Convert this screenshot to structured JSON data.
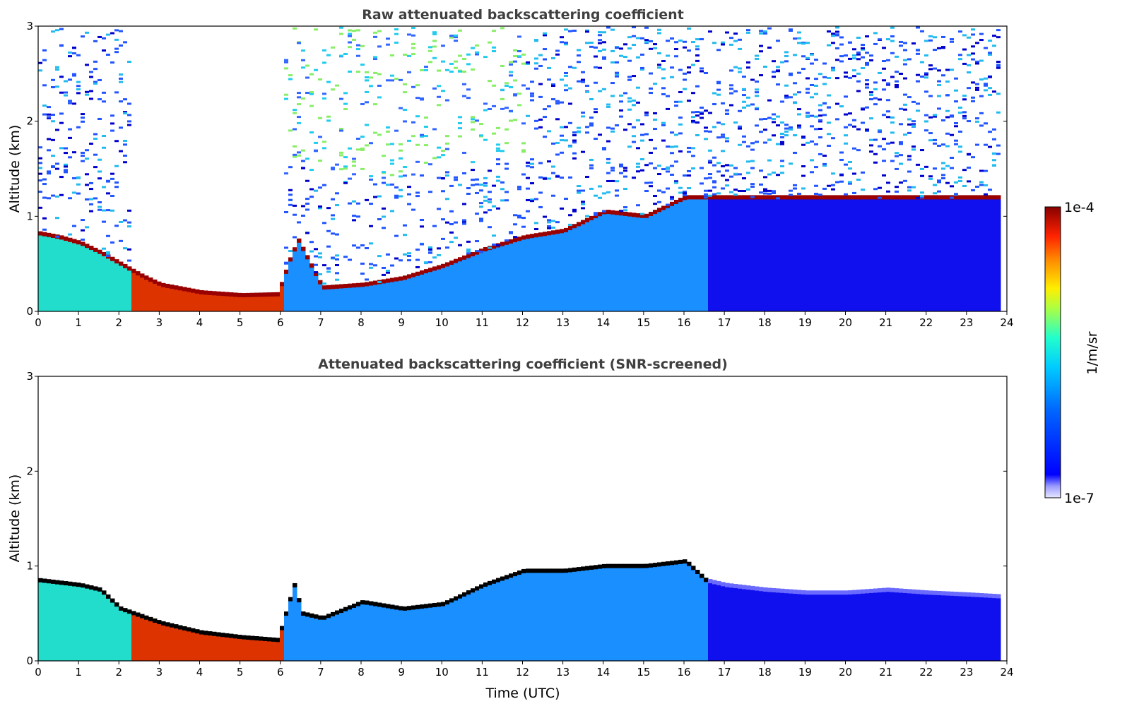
{
  "chart_data": [
    {
      "type": "heatmap",
      "id": "raw",
      "title": "Raw attenuated backscattering coefficient",
      "xlabel": "",
      "ylabel": "Altitude (km)",
      "xlim": [
        0,
        24
      ],
      "ylim": [
        0,
        3
      ],
      "xticks": [
        "0",
        "1",
        "2",
        "3",
        "4",
        "5",
        "6",
        "7",
        "8",
        "9",
        "10",
        "11",
        "12",
        "13",
        "14",
        "15",
        "16",
        "17",
        "18",
        "19",
        "20",
        "21",
        "22",
        "23",
        "24"
      ],
      "yticks": [
        "0",
        "1",
        "2",
        "3"
      ],
      "data_x_end": 23.8,
      "layer_top_km": [
        {
          "x": 0.0,
          "y": 0.82
        },
        {
          "x": 0.5,
          "y": 0.78
        },
        {
          "x": 1.0,
          "y": 0.72
        },
        {
          "x": 1.5,
          "y": 0.62
        },
        {
          "x": 2.0,
          "y": 0.5
        },
        {
          "x": 2.5,
          "y": 0.38
        },
        {
          "x": 3.0,
          "y": 0.28
        },
        {
          "x": 4.0,
          "y": 0.2
        },
        {
          "x": 5.0,
          "y": 0.17
        },
        {
          "x": 5.9,
          "y": 0.18
        },
        {
          "x": 6.2,
          "y": 0.55
        },
        {
          "x": 6.4,
          "y": 0.75
        },
        {
          "x": 7.0,
          "y": 0.25
        },
        {
          "x": 8.0,
          "y": 0.28
        },
        {
          "x": 9.0,
          "y": 0.35
        },
        {
          "x": 10.0,
          "y": 0.48
        },
        {
          "x": 11.0,
          "y": 0.65
        },
        {
          "x": 12.0,
          "y": 0.78
        },
        {
          "x": 13.0,
          "y": 0.85
        },
        {
          "x": 14.0,
          "y": 1.05
        },
        {
          "x": 15.0,
          "y": 1.0
        },
        {
          "x": 16.0,
          "y": 1.2
        }
      ],
      "description_regions": {
        "noise_free_window_hours": [
          2.3,
          6.0
        ],
        "clear_low_layer_km": 0.4
      },
      "colorbar": {
        "min": "1e-7",
        "max": "1e-4",
        "label": "1/m/sr",
        "scale": "log"
      }
    },
    {
      "type": "heatmap",
      "id": "screened",
      "title": "Attenuated backscattering coefficient (SNR-screened)",
      "xlabel": "Time (UTC)",
      "ylabel": "Altitude (km)",
      "xlim": [
        0,
        24
      ],
      "ylim": [
        0,
        3
      ],
      "xticks": [
        "0",
        "1",
        "2",
        "3",
        "4",
        "5",
        "6",
        "7",
        "8",
        "9",
        "10",
        "11",
        "12",
        "13",
        "14",
        "15",
        "16",
        "17",
        "18",
        "19",
        "20",
        "21",
        "22",
        "23",
        "24"
      ],
      "yticks": [
        "0",
        "1",
        "2",
        "3"
      ],
      "data_x_end": 23.8,
      "layer_top_km": [
        {
          "x": 0.0,
          "y": 0.85
        },
        {
          "x": 1.0,
          "y": 0.8
        },
        {
          "x": 1.5,
          "y": 0.75
        },
        {
          "x": 2.0,
          "y": 0.55
        },
        {
          "x": 3.0,
          "y": 0.4
        },
        {
          "x": 4.0,
          "y": 0.3
        },
        {
          "x": 5.0,
          "y": 0.25
        },
        {
          "x": 5.9,
          "y": 0.22
        },
        {
          "x": 6.3,
          "y": 0.8
        },
        {
          "x": 6.5,
          "y": 0.5
        },
        {
          "x": 7.0,
          "y": 0.45
        },
        {
          "x": 8.0,
          "y": 0.62
        },
        {
          "x": 9.0,
          "y": 0.55
        },
        {
          "x": 10.0,
          "y": 0.6
        },
        {
          "x": 11.0,
          "y": 0.8
        },
        {
          "x": 12.0,
          "y": 0.95
        },
        {
          "x": 13.0,
          "y": 0.95
        },
        {
          "x": 14.0,
          "y": 1.0
        },
        {
          "x": 15.0,
          "y": 1.0
        },
        {
          "x": 16.0,
          "y": 1.05
        },
        {
          "x": 16.5,
          "y": 0.85
        },
        {
          "x": 17.0,
          "y": 0.8
        },
        {
          "x": 18.0,
          "y": 0.75
        },
        {
          "x": 19.0,
          "y": 0.72
        },
        {
          "x": 20.0,
          "y": 0.72
        },
        {
          "x": 21.0,
          "y": 0.75
        },
        {
          "x": 22.0,
          "y": 0.72
        },
        {
          "x": 23.0,
          "y": 0.7
        },
        {
          "x": 23.8,
          "y": 0.68
        }
      ],
      "colorbar": {
        "min": "1e-7",
        "max": "1e-4",
        "label": "1/m/sr",
        "scale": "log"
      }
    }
  ],
  "colorbar": {
    "min_label": "1e-7",
    "max_label": "1e-4",
    "label": "1/m/sr",
    "colormap": "jet",
    "colormap_stops": [
      "#ffffff",
      "#0000ff",
      "#0077ff",
      "#00ccff",
      "#33ffcc",
      "#ccff33",
      "#ffcc00",
      "#ff4400",
      "#990000"
    ]
  }
}
